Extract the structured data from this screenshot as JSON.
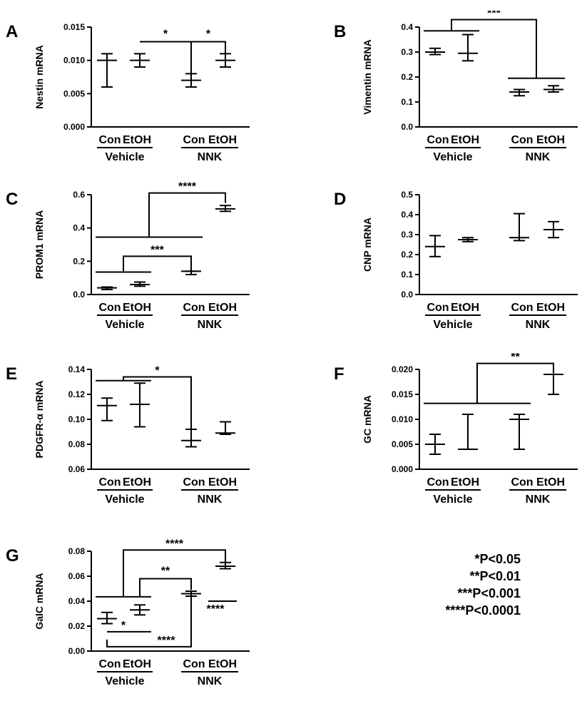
{
  "chart_data": [
    {
      "type": "scatter",
      "panel_letter": "A",
      "ylabel": "Nestin mRNA",
      "ylim": [
        0,
        0.015
      ],
      "yticks": [
        "0.000",
        "0.005",
        "0.010",
        "0.015"
      ],
      "categories": [
        "Con",
        "EtOH",
        "Con",
        "EtOH"
      ],
      "groups": [
        "Vehicle",
        "NNK"
      ],
      "values": [
        0.01,
        0.01,
        0.007,
        0.01
      ],
      "error_low": [
        0.006,
        0.009,
        0.006,
        0.009
      ],
      "error_high": [
        0.011,
        0.011,
        0.008,
        0.011
      ],
      "annotations": [
        {
          "label": "*",
          "from": 1,
          "to": 2,
          "level": 0.0128
        },
        {
          "label": "*",
          "from": 2,
          "to": 3,
          "level": 0.0128
        }
      ]
    },
    {
      "type": "scatter",
      "panel_letter": "B",
      "ylabel": "Vimentin mRNA",
      "ylim": [
        0,
        0.4
      ],
      "yticks": [
        "0.0",
        "0.1",
        "0.2",
        "0.3",
        "0.4"
      ],
      "categories": [
        "Con",
        "EtOH",
        "Con",
        "EtOH"
      ],
      "groups": [
        "Vehicle",
        "NNK"
      ],
      "values": [
        0.3,
        0.295,
        0.14,
        0.15
      ],
      "error_low": [
        0.29,
        0.265,
        0.125,
        0.14
      ],
      "error_high": [
        0.315,
        0.37,
        0.15,
        0.165
      ],
      "annotations": [
        {
          "label": "***",
          "from": 0,
          "to": 1,
          "level": 0.385,
          "to_level": 0.195,
          "to_from": 2,
          "to_to": 3,
          "top": 0.43
        }
      ]
    },
    {
      "type": "scatter",
      "panel_letter": "C",
      "ylabel": "PROM1 mRNA",
      "ylim": [
        0,
        0.6
      ],
      "yticks": [
        "0.0",
        "0.2",
        "0.4",
        "0.6"
      ],
      "categories": [
        "Con",
        "EtOH",
        "Con",
        "EtOH"
      ],
      "groups": [
        "Vehicle",
        "NNK"
      ],
      "values": [
        0.04,
        0.06,
        0.14,
        0.515
      ],
      "error_low": [
        0.03,
        0.05,
        0.12,
        0.5
      ],
      "error_high": [
        0.045,
        0.075,
        0.14,
        0.535
      ],
      "annotations": [
        {
          "label": "***",
          "from": 0,
          "to": 1,
          "level": 0.135,
          "to_level": 0.14,
          "to_from": 2,
          "to_to": 2,
          "top": 0.23
        },
        {
          "label": "****",
          "from": 0,
          "to": 2,
          "level": 0.345,
          "to_level": 0.55,
          "to_from": 3,
          "to_to": 3,
          "top": 0.61
        }
      ]
    },
    {
      "type": "scatter",
      "panel_letter": "D",
      "ylabel": "CNP mRNA",
      "ylim": [
        0,
        0.5
      ],
      "yticks": [
        "0.0",
        "0.1",
        "0.2",
        "0.3",
        "0.4",
        "0.5"
      ],
      "categories": [
        "Con",
        "EtOH",
        "Con",
        "EtOH"
      ],
      "groups": [
        "Vehicle",
        "NNK"
      ],
      "values": [
        0.24,
        0.275,
        0.285,
        0.325
      ],
      "error_low": [
        0.19,
        0.265,
        0.27,
        0.285
      ],
      "error_high": [
        0.295,
        0.285,
        0.405,
        0.365
      ],
      "annotations": []
    },
    {
      "type": "scatter",
      "panel_letter": "E",
      "ylabel": "PDGFR-α mRNA",
      "ylim": [
        0.06,
        0.14
      ],
      "yticks": [
        "0.06",
        "0.08",
        "0.10",
        "0.12",
        "0.14"
      ],
      "categories": [
        "Con",
        "EtOH",
        "Con",
        "EtOH"
      ],
      "groups": [
        "Vehicle",
        "NNK"
      ],
      "values": [
        0.111,
        0.112,
        0.083,
        0.089
      ],
      "error_low": [
        0.099,
        0.094,
        0.078,
        0.088
      ],
      "error_high": [
        0.117,
        0.129,
        0.092,
        0.098
      ],
      "annotations": [
        {
          "label": "*",
          "from": 0,
          "to": 1,
          "level": 0.131,
          "to_level": 0.092,
          "to_from": 2,
          "to_to": 2,
          "top": 0.134
        }
      ]
    },
    {
      "type": "scatter",
      "panel_letter": "F",
      "ylabel": "GC mRNA",
      "ylim": [
        0,
        0.02
      ],
      "yticks": [
        "0.000",
        "0.005",
        "0.010",
        "0.015",
        "0.020"
      ],
      "categories": [
        "Con",
        "EtOH",
        "Con",
        "EtOH"
      ],
      "groups": [
        "Vehicle",
        "NNK"
      ],
      "values": [
        0.005,
        0.004,
        0.01,
        0.019
      ],
      "error_low": [
        0.003,
        0.004,
        0.004,
        0.015
      ],
      "error_high": [
        0.007,
        0.011,
        0.011,
        0.019
      ],
      "annotations": [
        {
          "label": "**",
          "from": 0,
          "to": 2,
          "level": 0.0132,
          "to_level": 0.0192,
          "to_from": 3,
          "to_to": 3,
          "top": 0.0212
        }
      ]
    },
    {
      "type": "scatter",
      "panel_letter": "G",
      "ylabel": "GalC mRNA",
      "ylim": [
        0,
        0.08
      ],
      "yticks": [
        "0.00",
        "0.02",
        "0.04",
        "0.06",
        "0.08"
      ],
      "categories": [
        "Con",
        "EtOH",
        "Con",
        "EtOH"
      ],
      "groups": [
        "Vehicle",
        "NNK"
      ],
      "values": [
        0.026,
        0.033,
        0.046,
        0.068
      ],
      "error_low": [
        0.022,
        0.029,
        0.044,
        0.066
      ],
      "error_high": [
        0.031,
        0.037,
        0.048,
        0.071
      ],
      "annotations": [
        {
          "label": "*",
          "from": 0,
          "to": 1,
          "level": 0.0155,
          "kind": "lower"
        },
        {
          "label": "**",
          "from": 1,
          "to": 2,
          "level": 0.0435,
          "to_level": 0.049,
          "top": 0.058,
          "kind": "step"
        },
        {
          "label": "****",
          "from": 0,
          "to": 1,
          "level": 0.0435,
          "to_level": 0.071,
          "to_from": 3,
          "to_to": 3,
          "top": 0.081
        },
        {
          "label": "****",
          "from": 0,
          "to": 2,
          "level": 0.0035,
          "kind": "bottom"
        },
        {
          "label": "****",
          "from": 2,
          "to": 3,
          "level": 0.04,
          "kind": "under"
        }
      ]
    }
  ],
  "legend": [
    "*P<0.05",
    "**P<0.01",
    "***P<0.001",
    "****P<0.0001"
  ]
}
